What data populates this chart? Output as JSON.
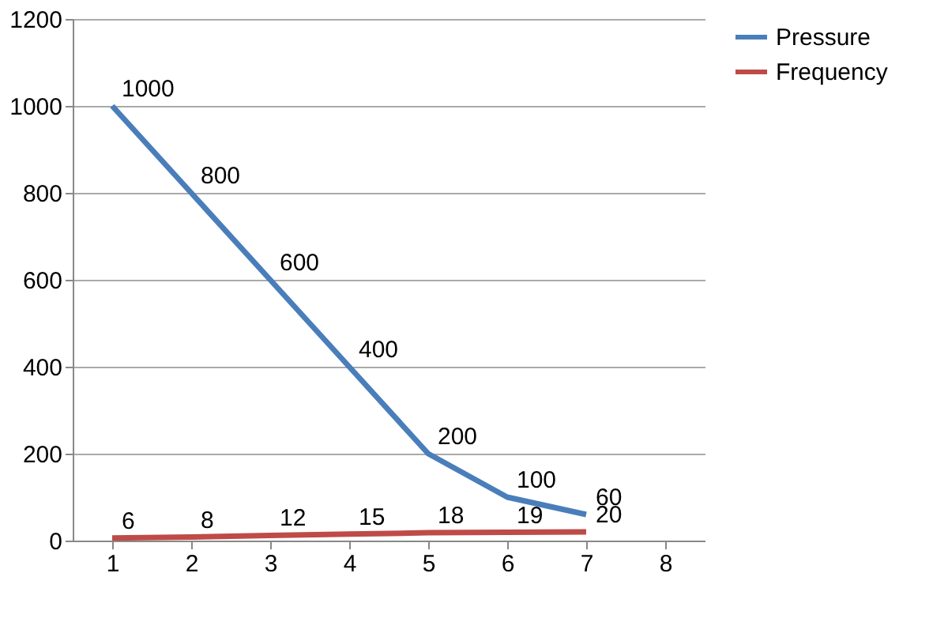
{
  "chart_data": {
    "type": "line",
    "categories": [
      "1",
      "2",
      "3",
      "4",
      "5",
      "6",
      "7",
      "8"
    ],
    "series": [
      {
        "name": "Pressure",
        "color": "#4a7ebb",
        "values": [
          1000,
          800,
          600,
          400,
          200,
          100,
          60,
          null
        ]
      },
      {
        "name": "Frequency",
        "color": "#be4b48",
        "values": [
          6,
          8,
          12,
          15,
          18,
          19,
          20,
          null
        ]
      }
    ],
    "ylim": [
      0,
      1200
    ],
    "yticks": [
      0,
      200,
      400,
      600,
      800,
      1000,
      1200
    ],
    "grid": "y",
    "legend": "right",
    "data_labels": true,
    "marker": "none",
    "line_style": "solid"
  }
}
